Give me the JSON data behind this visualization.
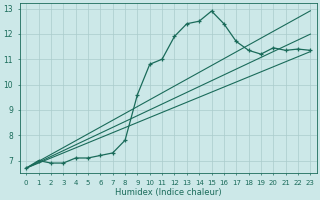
{
  "xlabel": "Humidex (Indice chaleur)",
  "bg_color": "#cce8e8",
  "grid_color": "#aacccc",
  "line_color": "#1a6b5a",
  "xlim": [
    -0.5,
    23.5
  ],
  "ylim": [
    6.5,
    13.2
  ],
  "xticks": [
    0,
    1,
    2,
    3,
    4,
    5,
    6,
    7,
    8,
    9,
    10,
    11,
    12,
    13,
    14,
    15,
    16,
    17,
    18,
    19,
    20,
    21,
    22,
    23
  ],
  "yticks": [
    7,
    8,
    9,
    10,
    11,
    12,
    13
  ],
  "humidex_data": [
    0,
    1,
    2,
    3,
    4,
    5,
    6,
    7,
    8,
    9,
    10,
    11,
    12,
    13,
    14,
    15,
    16,
    17,
    18,
    19,
    20,
    21,
    22,
    23
  ],
  "y_main": [
    6.7,
    7.0,
    6.9,
    6.9,
    7.1,
    7.1,
    7.2,
    7.3,
    7.8,
    9.6,
    10.8,
    11.0,
    11.9,
    12.4,
    12.5,
    12.9,
    12.4,
    11.7,
    11.35,
    11.2,
    11.45,
    11.35,
    11.4,
    11.35
  ],
  "y_line1": [
    6.7,
    6.9,
    7.1,
    7.3,
    7.5,
    7.7,
    7.9,
    8.1,
    8.3,
    8.5,
    8.7,
    8.9,
    9.1,
    9.3,
    9.5,
    9.7,
    9.9,
    10.1,
    10.3,
    10.5,
    10.7,
    10.9,
    11.1,
    11.3
  ],
  "y_line2": [
    6.7,
    6.93,
    7.16,
    7.39,
    7.62,
    7.85,
    8.08,
    8.31,
    8.54,
    8.77,
    9.0,
    9.23,
    9.46,
    9.69,
    9.92,
    10.15,
    10.38,
    10.61,
    10.84,
    11.07,
    11.3,
    11.53,
    11.76,
    11.99
  ],
  "y_line3": [
    6.7,
    6.97,
    7.24,
    7.51,
    7.78,
    8.05,
    8.32,
    8.59,
    8.86,
    9.13,
    9.4,
    9.67,
    9.94,
    10.21,
    10.48,
    10.75,
    11.02,
    11.29,
    11.56,
    11.83,
    12.1,
    12.37,
    12.64,
    12.91
  ]
}
